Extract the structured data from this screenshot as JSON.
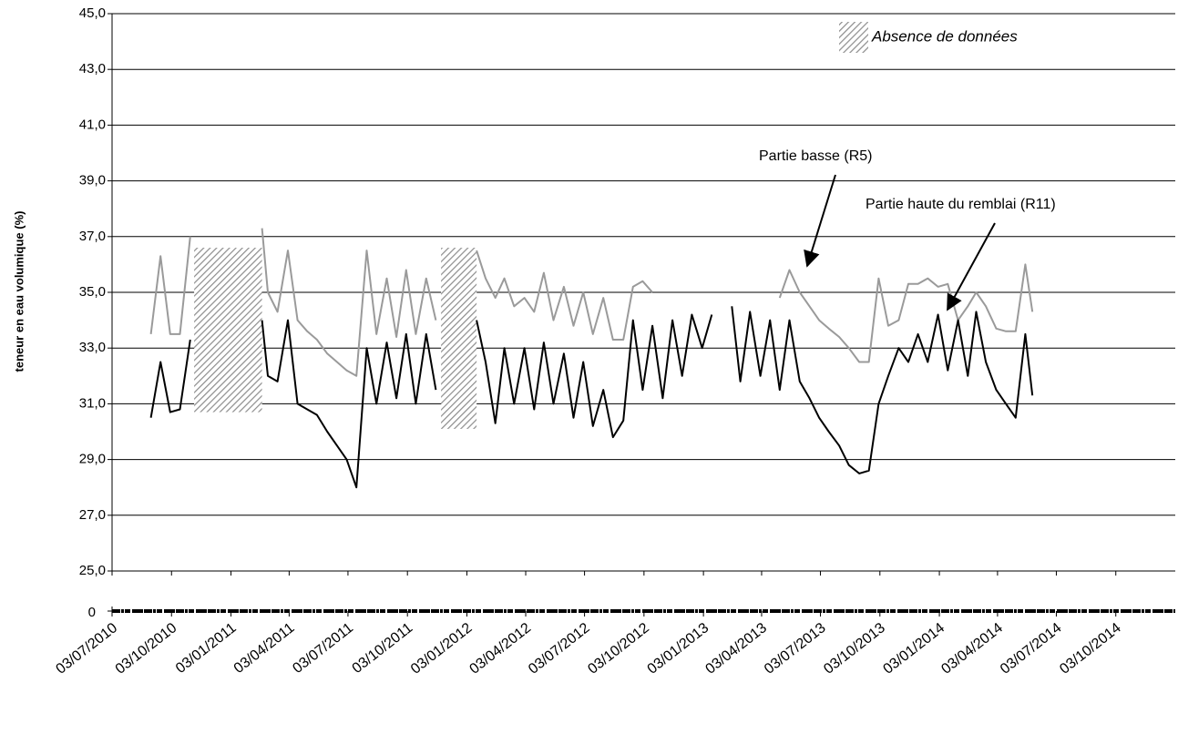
{
  "chart_data": {
    "type": "line",
    "y_label": "teneur en eau volumique (%)",
    "gap_label": "Absence de données",
    "grid": true,
    "ylim": [
      25,
      45
    ],
    "yticks": [
      {
        "value": 25,
        "label": "25,0"
      },
      {
        "value": 27,
        "label": "27,0"
      },
      {
        "value": 29,
        "label": "29,0"
      },
      {
        "value": 31,
        "label": "31,0"
      },
      {
        "value": 33,
        "label": "33,0"
      },
      {
        "value": 35,
        "label": "35,0"
      },
      {
        "value": 37,
        "label": "37,0"
      },
      {
        "value": 39,
        "label": "39,0"
      },
      {
        "value": 41,
        "label": "41,0"
      },
      {
        "value": 43,
        "label": "43,0"
      },
      {
        "value": 45,
        "label": "45,0"
      }
    ],
    "y_break_tick": 0,
    "xlim": [
      "03/07/2010",
      "03/01/2015"
    ],
    "xticks": [
      "03/07/2010",
      "03/10/2010",
      "03/01/2011",
      "03/04/2011",
      "03/07/2011",
      "03/10/2011",
      "03/01/2012",
      "03/04/2012",
      "03/07/2012",
      "03/10/2012",
      "03/01/2013",
      "03/04/2013",
      "03/07/2013",
      "03/10/2013",
      "03/01/2014",
      "03/04/2014",
      "03/07/2014",
      "03/10/2014"
    ],
    "gaps": [
      {
        "start": "07/11/2010",
        "end": "20/02/2011",
        "ymin": 30.7,
        "ymax": 36.6
      },
      {
        "start": "24/11/2011",
        "end": "18/01/2012",
        "ymin": 30.1,
        "ymax": 36.6
      }
    ],
    "x": [
      "05/07/2010",
      "16/07/2010",
      "01/09/2010",
      "16/09/2010",
      "01/10/2010",
      "16/10/2010",
      "01/11/2010",
      "16/11/2010",
      "20/02/2011",
      "01/03/2011",
      "16/03/2011",
      "01/04/2011",
      "16/04/2011",
      "01/05/2011",
      "16/05/2011",
      "01/06/2011",
      "16/06/2011",
      "01/07/2011",
      "16/07/2011",
      "01/08/2011",
      "16/08/2011",
      "01/09/2011",
      "16/09/2011",
      "01/10/2011",
      "16/10/2011",
      "01/11/2011",
      "16/11/2011",
      "01/12/2011",
      "18/01/2012",
      "01/02/2012",
      "16/02/2012",
      "01/03/2012",
      "16/03/2012",
      "01/04/2012",
      "16/04/2012",
      "01/05/2012",
      "16/05/2012",
      "01/06/2012",
      "16/06/2012",
      "01/07/2012",
      "16/07/2012",
      "01/08/2012",
      "16/08/2012",
      "01/09/2012",
      "16/09/2012",
      "01/10/2012",
      "16/10/2012",
      "01/11/2012",
      "16/11/2012",
      "01/12/2012",
      "16/12/2012",
      "01/01/2013",
      "16/01/2013",
      "01/02/2013",
      "16/02/2013",
      "01/03/2013",
      "16/03/2013",
      "01/04/2013",
      "16/04/2013",
      "01/05/2013",
      "16/05/2013",
      "01/06/2013",
      "16/06/2013",
      "01/07/2013",
      "16/07/2013",
      "01/08/2013",
      "16/08/2013",
      "01/09/2013",
      "16/09/2013",
      "01/10/2013",
      "16/10/2013",
      "01/11/2013",
      "16/11/2013",
      "01/12/2013",
      "16/12/2013",
      "01/01/2014",
      "16/01/2014",
      "01/02/2014",
      "16/02/2014",
      "01/03/2014",
      "16/03/2014",
      "01/04/2014",
      "16/04/2014",
      "01/05/2014",
      "16/05/2014",
      "27/05/2014"
    ],
    "series": [
      {
        "name": "Partie basse (R5)",
        "color": "#9a9a9a",
        "values": [
          32.8,
          null,
          33.5,
          36.3,
          33.5,
          33.5,
          37.0,
          null,
          37.3,
          35.0,
          34.3,
          36.5,
          34.0,
          33.6,
          33.3,
          32.8,
          32.5,
          32.2,
          32.0,
          36.5,
          33.5,
          35.5,
          33.4,
          35.8,
          33.5,
          35.5,
          34.0,
          null,
          36.5,
          35.5,
          34.8,
          35.5,
          34.5,
          34.8,
          34.3,
          35.7,
          34.0,
          35.2,
          33.8,
          35.0,
          33.5,
          34.8,
          33.3,
          33.3,
          35.2,
          35.4,
          35.0,
          null,
          null,
          null,
          35.0,
          null,
          null,
          null,
          null,
          null,
          null,
          null,
          null,
          34.8,
          35.8,
          35.0,
          34.5,
          34.0,
          33.7,
          33.4,
          33.0,
          32.5,
          32.5,
          35.5,
          33.8,
          34.0,
          35.3,
          35.3,
          35.5,
          35.2,
          35.3,
          34.0,
          34.5,
          35.0,
          34.5,
          33.7,
          33.6,
          33.6,
          36.0,
          34.3
        ]
      },
      {
        "name": "Partie haute du remblai (R11)",
        "color": "#000000",
        "values": [
          29.6,
          null,
          30.5,
          32.5,
          30.7,
          30.8,
          33.3,
          null,
          34.0,
          32.0,
          31.8,
          34.0,
          31.0,
          30.8,
          30.6,
          30.0,
          29.5,
          29.0,
          28.0,
          33.0,
          31.0,
          33.2,
          31.2,
          33.5,
          31.0,
          33.5,
          31.5,
          null,
          34.0,
          32.5,
          30.3,
          33.0,
          31.0,
          33.0,
          30.8,
          33.2,
          31.0,
          32.8,
          30.5,
          32.5,
          30.2,
          31.5,
          29.8,
          30.4,
          34.0,
          31.5,
          33.8,
          31.2,
          34.0,
          32.0,
          34.2,
          33.0,
          34.2,
          null,
          34.5,
          31.8,
          34.3,
          32.0,
          34.0,
          31.5,
          34.0,
          31.8,
          31.2,
          30.5,
          30.0,
          29.5,
          28.8,
          28.5,
          28.6,
          31.0,
          32.0,
          33.0,
          32.5,
          33.5,
          32.5,
          34.2,
          32.2,
          34.0,
          32.0,
          34.3,
          32.5,
          31.5,
          31.0,
          30.5,
          33.5,
          31.3
        ]
      }
    ]
  }
}
